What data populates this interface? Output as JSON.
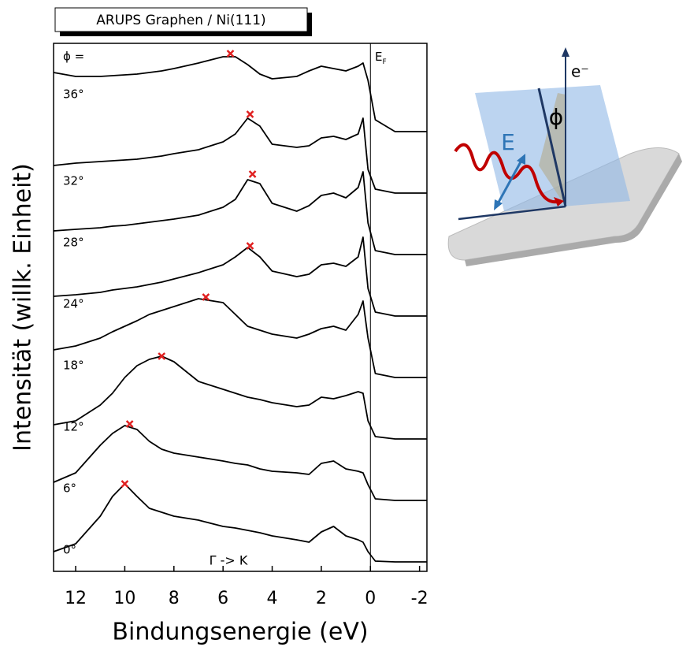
{
  "chart_data": {
    "type": "line",
    "title": "ARUPS Graphen / Ni(111)",
    "x_label": "Bindungsenergie (eV)",
    "y_label": "Intensität (willk. Einheit)",
    "xlim": [
      12.9,
      -2.3
    ],
    "xticks": [
      12,
      10,
      8,
      6,
      4,
      2,
      0,
      -2
    ],
    "fermi_x": 0,
    "color": "#000000",
    "peak_color": "#e02020",
    "annotations": {
      "angle_header": "ϕ =",
      "fermi": "E",
      "fermi_sub": "F",
      "direction": "Γ -> K",
      "electron": "e⁻",
      "angle": "ϕ",
      "field": "E"
    },
    "x": [
      12.9,
      12,
      11,
      10.5,
      10,
      9.5,
      9,
      8.5,
      8,
      7,
      6,
      5.5,
      5,
      4.5,
      4,
      3,
      2.5,
      2,
      1.5,
      1,
      0.5,
      0.3,
      0.1,
      -0.2,
      -1,
      -2.3
    ],
    "series": [
      {
        "name": "0°",
        "peak_x": 10.0,
        "peak_y": 99,
        "values": [
          13,
          23,
          58,
          83,
          99,
          83,
          68,
          63,
          58,
          53,
          45,
          43,
          40,
          37,
          33,
          28,
          25,
          38,
          45,
          33,
          28,
          25,
          13,
          1,
          0,
          0
        ]
      },
      {
        "name": "6°",
        "peak_x": 9.8,
        "peak_y": 97,
        "values": [
          23,
          35,
          70,
          85,
          95,
          90,
          75,
          65,
          60,
          55,
          50,
          47,
          45,
          40,
          37,
          35,
          33,
          47,
          50,
          40,
          37,
          35,
          20,
          2,
          0,
          0
        ]
      },
      {
        "name": "12°",
        "peak_x": 8.5,
        "peak_y": 105,
        "values": [
          18,
          23,
          43,
          58,
          78,
          93,
          101,
          105,
          98,
          73,
          63,
          58,
          53,
          50,
          46,
          41,
          43,
          53,
          51,
          55,
          60,
          58,
          23,
          3,
          0,
          0
        ]
      },
      {
        "name": "18°",
        "peak_x": 6.7,
        "peak_y": 102,
        "values": [
          35,
          40,
          50,
          58,
          65,
          72,
          80,
          85,
          90,
          100,
          95,
          80,
          65,
          60,
          55,
          50,
          55,
          62,
          65,
          60,
          80,
          97,
          50,
          5,
          0,
          0
        ]
      },
      {
        "name": "24°",
        "peak_x": 4.9,
        "peak_y": 89,
        "values": [
          25,
          27,
          30,
          33,
          35,
          37,
          40,
          43,
          47,
          55,
          65,
          75,
          87,
          75,
          57,
          50,
          53,
          65,
          67,
          63,
          75,
          100,
          35,
          5,
          0,
          0
        ]
      },
      {
        "name": "28°",
        "peak_x": 4.8,
        "peak_y": 102,
        "values": [
          30,
          32,
          34,
          36,
          37,
          39,
          41,
          43,
          45,
          50,
          60,
          70,
          95,
          90,
          65,
          55,
          62,
          75,
          78,
          72,
          85,
          105,
          40,
          5,
          0,
          0
        ]
      },
      {
        "name": "32°",
        "peak_x": 4.9,
        "peak_y": 100,
        "values": [
          35,
          38,
          40,
          41,
          42,
          43,
          45,
          47,
          50,
          55,
          65,
          75,
          95,
          85,
          62,
          58,
          60,
          70,
          72,
          68,
          75,
          95,
          30,
          5,
          0,
          0
        ]
      },
      {
        "name": "36°",
        "peak_x": 5.7,
        "peak_y": 99,
        "values": [
          75,
          70,
          70,
          71,
          72,
          73,
          75,
          77,
          80,
          87,
          95,
          95,
          85,
          73,
          67,
          70,
          77,
          83,
          80,
          77,
          83,
          87,
          65,
          15,
          0,
          0
        ]
      }
    ]
  }
}
